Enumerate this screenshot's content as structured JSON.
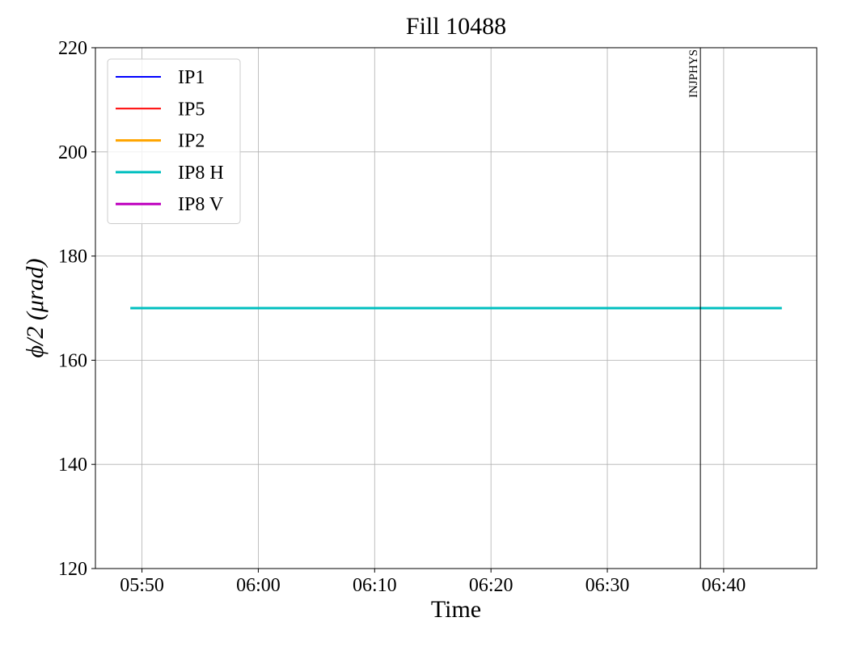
{
  "chart_data": {
    "type": "line",
    "title": "Fill 10488",
    "xlabel": "Time",
    "ylabel": "ϕ/2 (μrad)",
    "x": [
      "05:49",
      "06:45"
    ],
    "series": [
      {
        "name": "IP1",
        "color": "#0000ff",
        "values": [
          null,
          null
        ]
      },
      {
        "name": "IP5",
        "color": "#ff0000",
        "values": [
          null,
          null
        ]
      },
      {
        "name": "IP2",
        "color": "#ffa500",
        "values": [
          null,
          null
        ]
      },
      {
        "name": "IP8 H",
        "color": "#00bfbf",
        "values": [
          170,
          170
        ]
      },
      {
        "name": "IP8 V",
        "color": "#bf00bf",
        "values": [
          null,
          null
        ]
      }
    ],
    "xlim": [
      "05:46",
      "06:48"
    ],
    "xticks": [
      "05:50",
      "06:00",
      "06:10",
      "06:20",
      "06:30",
      "06:40"
    ],
    "ylim": [
      120,
      220
    ],
    "yticks": [
      120,
      140,
      160,
      180,
      200,
      220
    ],
    "grid": true,
    "legend": "upper left",
    "annotations": [
      {
        "x": "06:38",
        "label": "INJPHYS"
      }
    ]
  }
}
